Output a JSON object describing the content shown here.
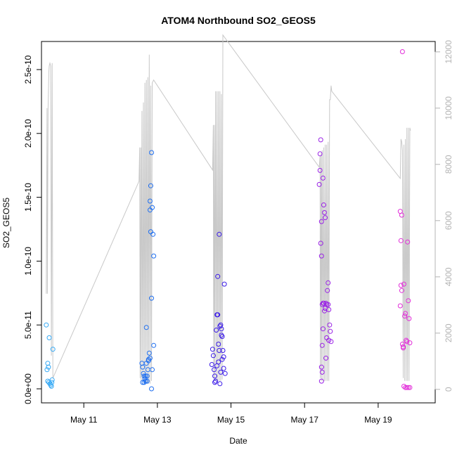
{
  "chart_data": {
    "type": "scatter",
    "title": "ATOM4 Northbound SO2_GEOS5",
    "xlabel": "Date",
    "ylabel": "SO2_GEOS5",
    "x_unit": "day of May 2018",
    "xlim": [
      9.85,
      20.55
    ],
    "ylim": [
      -1.1e-11,
      2.72e-10
    ],
    "x_ticks": [
      {
        "value": 11,
        "label": "May 11"
      },
      {
        "value": 13,
        "label": "May 13"
      },
      {
        "value": 15,
        "label": "May 15"
      },
      {
        "value": 17,
        "label": "May 17"
      },
      {
        "value": 19,
        "label": "May 19"
      }
    ],
    "y_ticks": [
      {
        "value": 0,
        "label": "0.0e+00"
      },
      {
        "value": 5e-11,
        "label": "5.0e-11"
      },
      {
        "value": 1e-10,
        "label": "1.0e-10"
      },
      {
        "value": 1.5e-10,
        "label": "1.5e-10"
      },
      {
        "value": 2e-10,
        "label": "2.0e-10"
      },
      {
        "value": 2.5e-10,
        "label": "2.5e-10"
      }
    ],
    "y2_ticks": [
      {
        "value": 0,
        "label": "0"
      },
      {
        "value": 2000,
        "label": "2000"
      },
      {
        "value": 4000,
        "label": "4000"
      },
      {
        "value": 6000,
        "label": "6000"
      },
      {
        "value": 8000,
        "label": "8000"
      },
      {
        "value": 10000,
        "label": "10000"
      },
      {
        "value": 12000,
        "label": "12000"
      }
    ],
    "y2lim": [
      -480,
      12370
    ],
    "grid": false,
    "series": [
      {
        "color": "#33a8f5",
        "points": [
          [
            9.98,
            5e-11
          ],
          [
            10.0,
            1.5e-11
          ],
          [
            10.02,
            2e-11
          ],
          [
            10.04,
            1.7e-11
          ],
          [
            10.06,
            4e-11
          ],
          [
            10.02,
            6e-12
          ],
          [
            10.05,
            5e-12
          ],
          [
            10.08,
            4e-12
          ],
          [
            10.1,
            3e-12
          ],
          [
            10.12,
            2e-12
          ],
          [
            10.14,
            7e-12
          ],
          [
            10.16,
            3.1e-11
          ],
          [
            10.13,
            5e-12
          ]
        ]
      },
      {
        "color": "#1f6ff0",
        "points": [
          [
            12.58,
            2e-11
          ],
          [
            12.6,
            1.7e-11
          ],
          [
            12.62,
            1.2e-11
          ],
          [
            12.64,
            1e-11
          ],
          [
            12.66,
            8e-12
          ],
          [
            12.68,
            6e-12
          ],
          [
            12.6,
            5e-12
          ],
          [
            12.7,
            2e-11
          ],
          [
            12.72,
            1e-11
          ],
          [
            12.74,
            1.5e-11
          ],
          [
            12.76,
            2.3e-11
          ],
          [
            12.7,
            4.8e-11
          ],
          [
            12.78,
            2.8e-11
          ],
          [
            12.8,
            1.4e-10
          ],
          [
            12.8,
            1.47e-10
          ],
          [
            12.82,
            1.59e-10
          ],
          [
            12.84,
            1.85e-10
          ],
          [
            12.86,
            1.42e-10
          ],
          [
            12.88,
            1.21e-10
          ],
          [
            12.9,
            1.04e-10
          ],
          [
            12.82,
            1.23e-10
          ],
          [
            12.84,
            7.1e-11
          ],
          [
            12.86,
            1.5e-11
          ],
          [
            12.9,
            3.4e-11
          ],
          [
            12.84,
            0
          ],
          [
            12.76,
            2.2e-11
          ],
          [
            12.8,
            2.4e-11
          ],
          [
            12.64,
            5e-12
          ],
          [
            12.68,
            1e-11
          ],
          [
            12.72,
            6e-12
          ]
        ]
      },
      {
        "color": "#3a1ae8",
        "points": [
          [
            14.5,
            3.1e-11
          ],
          [
            14.52,
            2.6e-11
          ],
          [
            14.54,
            1.5e-11
          ],
          [
            14.56,
            1e-11
          ],
          [
            14.58,
            6e-12
          ],
          [
            14.6,
            4.6e-11
          ],
          [
            14.62,
            5.8e-11
          ],
          [
            14.64,
            5.8e-11
          ],
          [
            14.66,
            3.5e-11
          ],
          [
            14.68,
            3e-11
          ],
          [
            14.7,
            4.9e-11
          ],
          [
            14.72,
            5e-11
          ],
          [
            14.74,
            4.7e-11
          ],
          [
            14.76,
            4.1e-11
          ],
          [
            14.78,
            3e-11
          ],
          [
            14.8,
            2.5e-11
          ],
          [
            14.64,
            8.8e-11
          ],
          [
            14.68,
            1.21e-10
          ],
          [
            14.82,
            8.2e-11
          ],
          [
            14.84,
            1.2e-11
          ],
          [
            14.62,
            1.8e-11
          ],
          [
            14.66,
            2.1e-11
          ],
          [
            14.72,
            1.3e-11
          ],
          [
            14.76,
            2.3e-11
          ],
          [
            14.8,
            1.6e-11
          ],
          [
            14.48,
            1.9e-11
          ],
          [
            14.56,
            5e-12
          ],
          [
            14.7,
            4e-12
          ],
          [
            14.74,
            4.2e-11
          ]
        ]
      },
      {
        "color": "#9a22e6",
        "points": [
          [
            17.4,
            1.6e-10
          ],
          [
            17.42,
            1.84e-10
          ],
          [
            17.44,
            1.95e-10
          ],
          [
            17.42,
            1.71e-10
          ],
          [
            17.46,
            1.31e-10
          ],
          [
            17.44,
            1.14e-10
          ],
          [
            17.46,
            1.04e-10
          ],
          [
            17.48,
            6.6e-11
          ],
          [
            17.5,
            6.7e-11
          ],
          [
            17.52,
            6.7e-11
          ],
          [
            17.54,
            6.1e-11
          ],
          [
            17.56,
            6.3e-11
          ],
          [
            17.58,
            6.7e-11
          ],
          [
            17.6,
            6.6e-11
          ],
          [
            17.62,
            7.7e-11
          ],
          [
            17.64,
            8.3e-11
          ],
          [
            17.66,
            6.2e-11
          ],
          [
            17.68,
            5e-11
          ],
          [
            17.7,
            4.5e-11
          ],
          [
            17.72,
            3.7e-11
          ],
          [
            17.66,
            3.8e-11
          ],
          [
            17.48,
            3.4e-11
          ],
          [
            17.5,
            4.7e-11
          ],
          [
            17.52,
            1.44e-10
          ],
          [
            17.54,
            1.38e-10
          ],
          [
            17.56,
            1.34e-10
          ],
          [
            17.5,
            1.65e-10
          ],
          [
            17.46,
            1.7e-11
          ],
          [
            17.48,
            1.3e-11
          ],
          [
            17.46,
            6e-12
          ],
          [
            17.58,
            2.4e-11
          ],
          [
            17.6,
            4e-11
          ],
          [
            17.64,
            6.6e-11
          ]
        ]
      },
      {
        "color": "#e22fd9",
        "points": [
          [
            19.6,
            1.39e-10
          ],
          [
            19.62,
            8.1e-11
          ],
          [
            19.64,
            1.36e-10
          ],
          [
            19.66,
            2.64e-10
          ],
          [
            19.6,
            6.5e-11
          ],
          [
            19.62,
            1.16e-10
          ],
          [
            19.64,
            7.7e-11
          ],
          [
            19.66,
            3.5e-11
          ],
          [
            19.68,
            3.3e-11
          ],
          [
            19.7,
            8.2e-11
          ],
          [
            19.72,
            5.7e-11
          ],
          [
            19.74,
            5.9e-11
          ],
          [
            19.76,
            3.8e-11
          ],
          [
            19.78,
            3.7e-11
          ],
          [
            19.8,
            1.15e-10
          ],
          [
            19.82,
            6.9e-11
          ],
          [
            19.84,
            5.5e-11
          ],
          [
            19.86,
            3.6e-11
          ],
          [
            19.7,
            2e-12
          ],
          [
            19.74,
            1e-12
          ],
          [
            19.78,
            1e-12
          ],
          [
            19.82,
            1e-12
          ],
          [
            19.86,
            1e-12
          ],
          [
            19.68,
            3.2e-11
          ]
        ]
      }
    ],
    "secondary_line": {
      "color": "#c8c8c8",
      "description_axis": "right",
      "points": [
        [
          9.98,
          3400
        ],
        [
          10.0,
          10000
        ],
        [
          10.01,
          3400
        ],
        [
          10.03,
          10000
        ],
        [
          10.05,
          11300
        ],
        [
          10.06,
          11500
        ],
        [
          10.08,
          11600
        ],
        [
          10.1,
          11500
        ],
        [
          10.12,
          1200
        ],
        [
          10.14,
          11600
        ],
        [
          10.16,
          400
        ],
        [
          12.5,
          7400
        ],
        [
          12.52,
          8600
        ],
        [
          12.53,
          400
        ],
        [
          12.55,
          8600
        ],
        [
          12.56,
          300
        ],
        [
          12.58,
          9900
        ],
        [
          12.6,
          350
        ],
        [
          12.62,
          10200
        ],
        [
          12.64,
          200
        ],
        [
          12.66,
          10900
        ],
        [
          12.68,
          200
        ],
        [
          12.7,
          11000
        ],
        [
          12.72,
          200
        ],
        [
          12.74,
          11100
        ],
        [
          12.76,
          200
        ],
        [
          12.78,
          11900
        ],
        [
          12.8,
          200
        ],
        [
          12.82,
          10800
        ],
        [
          12.84,
          300
        ],
        [
          12.86,
          10900
        ],
        [
          12.9,
          11000
        ],
        [
          14.5,
          7800
        ],
        [
          14.52,
          9400
        ],
        [
          14.53,
          400
        ],
        [
          14.55,
          9400
        ],
        [
          14.56,
          300
        ],
        [
          14.58,
          10600
        ],
        [
          14.6,
          300
        ],
        [
          14.62,
          10600
        ],
        [
          14.64,
          300
        ],
        [
          14.66,
          10600
        ],
        [
          14.68,
          300
        ],
        [
          14.7,
          10600
        ],
        [
          14.72,
          300
        ],
        [
          14.74,
          10500
        ],
        [
          14.76,
          350
        ],
        [
          14.78,
          12600
        ],
        [
          17.4,
          7900
        ],
        [
          17.42,
          8300
        ],
        [
          17.43,
          400
        ],
        [
          17.45,
          8400
        ],
        [
          17.46,
          300
        ],
        [
          17.48,
          8500
        ],
        [
          17.5,
          300
        ],
        [
          17.52,
          8600
        ],
        [
          17.54,
          300
        ],
        [
          17.56,
          8700
        ],
        [
          17.58,
          300
        ],
        [
          17.6,
          8700
        ],
        [
          17.62,
          300
        ],
        [
          17.64,
          8800
        ],
        [
          17.66,
          300
        ],
        [
          17.68,
          10300
        ],
        [
          17.7,
          10300
        ],
        [
          17.72,
          10800
        ],
        [
          17.74,
          10600
        ],
        [
          19.6,
          7500
        ],
        [
          19.62,
          8900
        ],
        [
          19.64,
          8800
        ],
        [
          19.66,
          8500
        ],
        [
          19.68,
          400
        ],
        [
          19.7,
          8700
        ],
        [
          19.72,
          300
        ],
        [
          19.74,
          8900
        ],
        [
          19.76,
          300
        ],
        [
          19.78,
          9300
        ],
        [
          19.8,
          300
        ],
        [
          19.82,
          9300
        ],
        [
          19.84,
          300
        ],
        [
          19.86,
          9300
        ],
        [
          19.88,
          9200
        ]
      ]
    }
  }
}
